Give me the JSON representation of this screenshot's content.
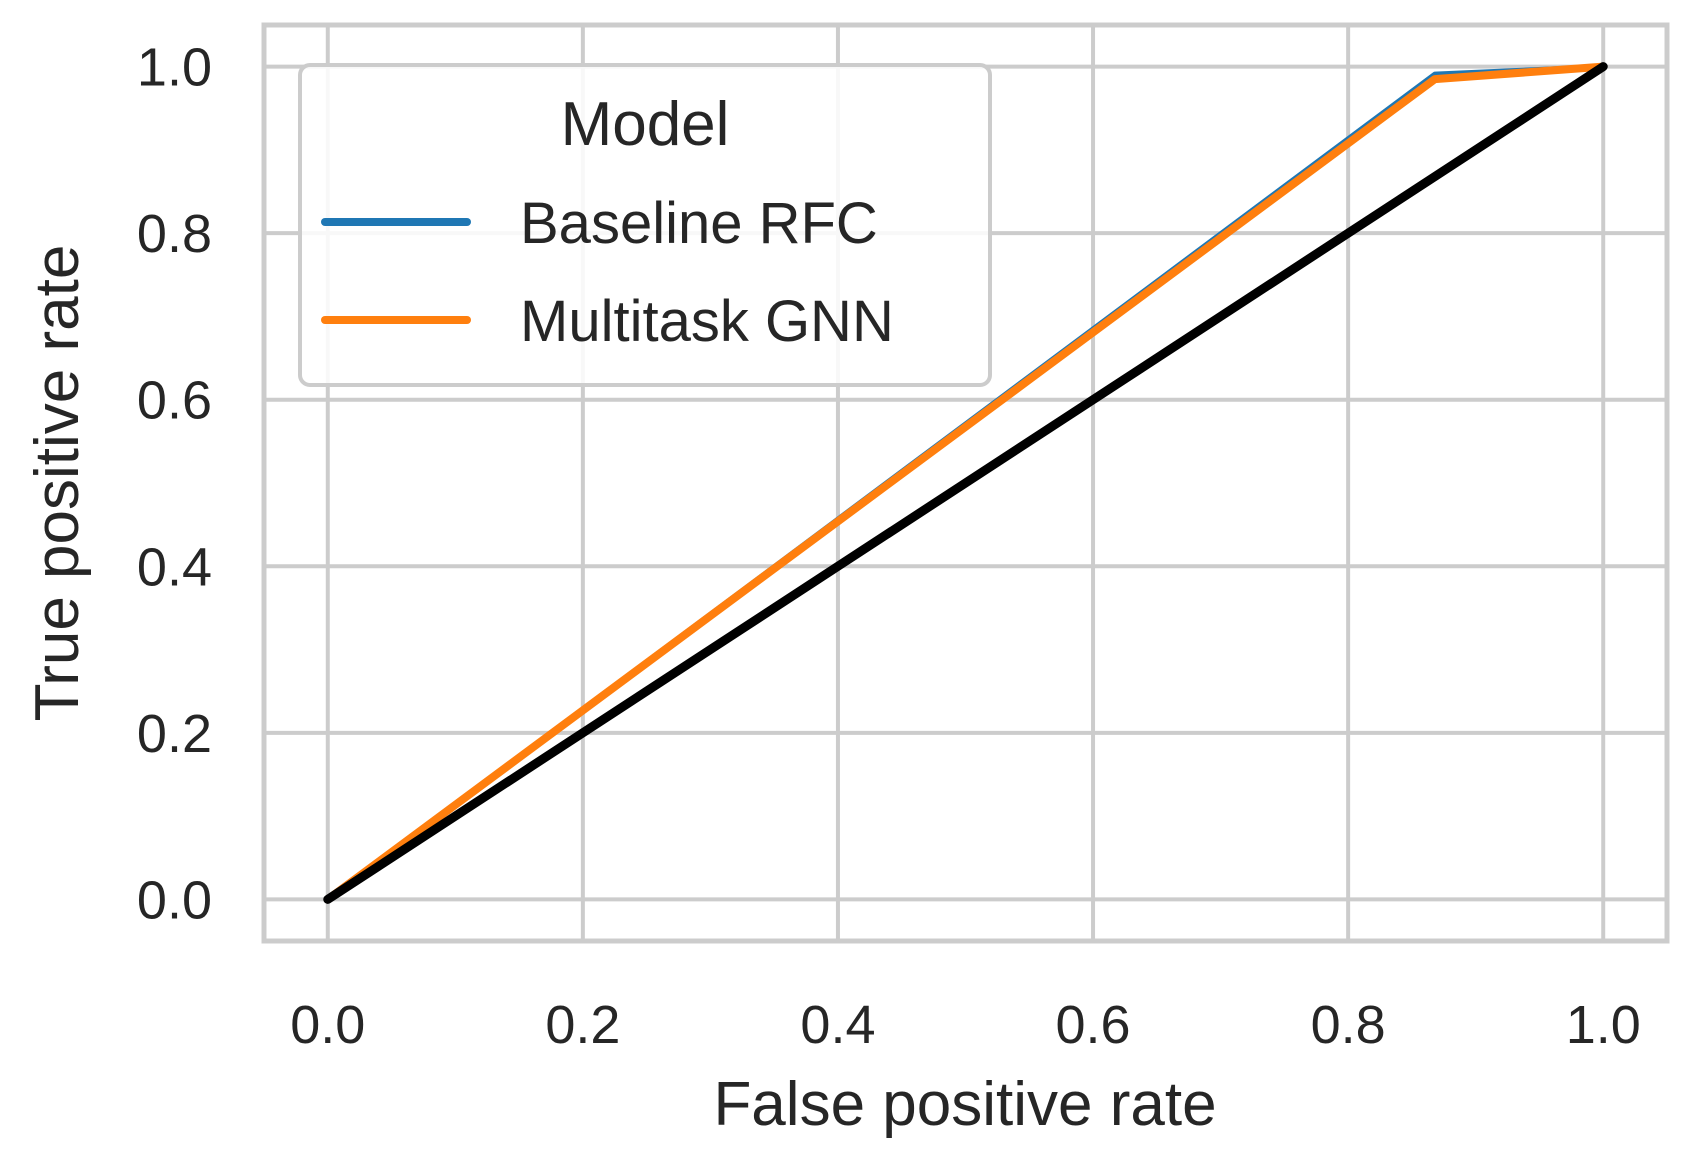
{
  "chart_data": {
    "type": "line",
    "title": "",
    "xlabel": "False positive rate",
    "ylabel": "True positive rate",
    "xlim": [
      -0.05,
      1.05
    ],
    "ylim": [
      -0.05,
      1.05
    ],
    "xticks": [
      "0.0",
      "0.2",
      "0.4",
      "0.6",
      "0.8",
      "1.0"
    ],
    "yticks": [
      "0.0",
      "0.2",
      "0.4",
      "0.6",
      "0.8",
      "1.0"
    ],
    "grid": true,
    "legend": {
      "title": "Model",
      "placement": "top-left"
    },
    "series": [
      {
        "name": "Baseline RFC",
        "color": "#1f77b4",
        "x": [
          0.0,
          0.868,
          1.0
        ],
        "y": [
          0.0,
          0.991,
          1.0
        ]
      },
      {
        "name": "Multitask GNN",
        "color": "#ff7f0e",
        "x": [
          0.0,
          0.868,
          1.0
        ],
        "y": [
          0.0,
          0.985,
          1.0
        ]
      }
    ],
    "reference_line": {
      "color": "#000000",
      "x": [
        0.0,
        1.0
      ],
      "y": [
        0.0,
        1.0
      ]
    }
  }
}
